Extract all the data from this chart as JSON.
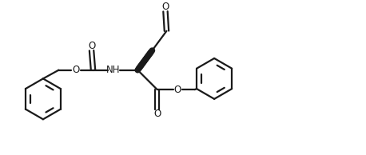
{
  "bg_color": "#ffffff",
  "line_color": "#1a1a1a",
  "line_width": 1.6,
  "fig_width": 4.58,
  "fig_height": 1.94,
  "dpi": 100,
  "xlim": [
    0,
    9.16
  ],
  "ylim": [
    0,
    3.88
  ],
  "benzene_r": 0.52,
  "font_size": 8.5
}
